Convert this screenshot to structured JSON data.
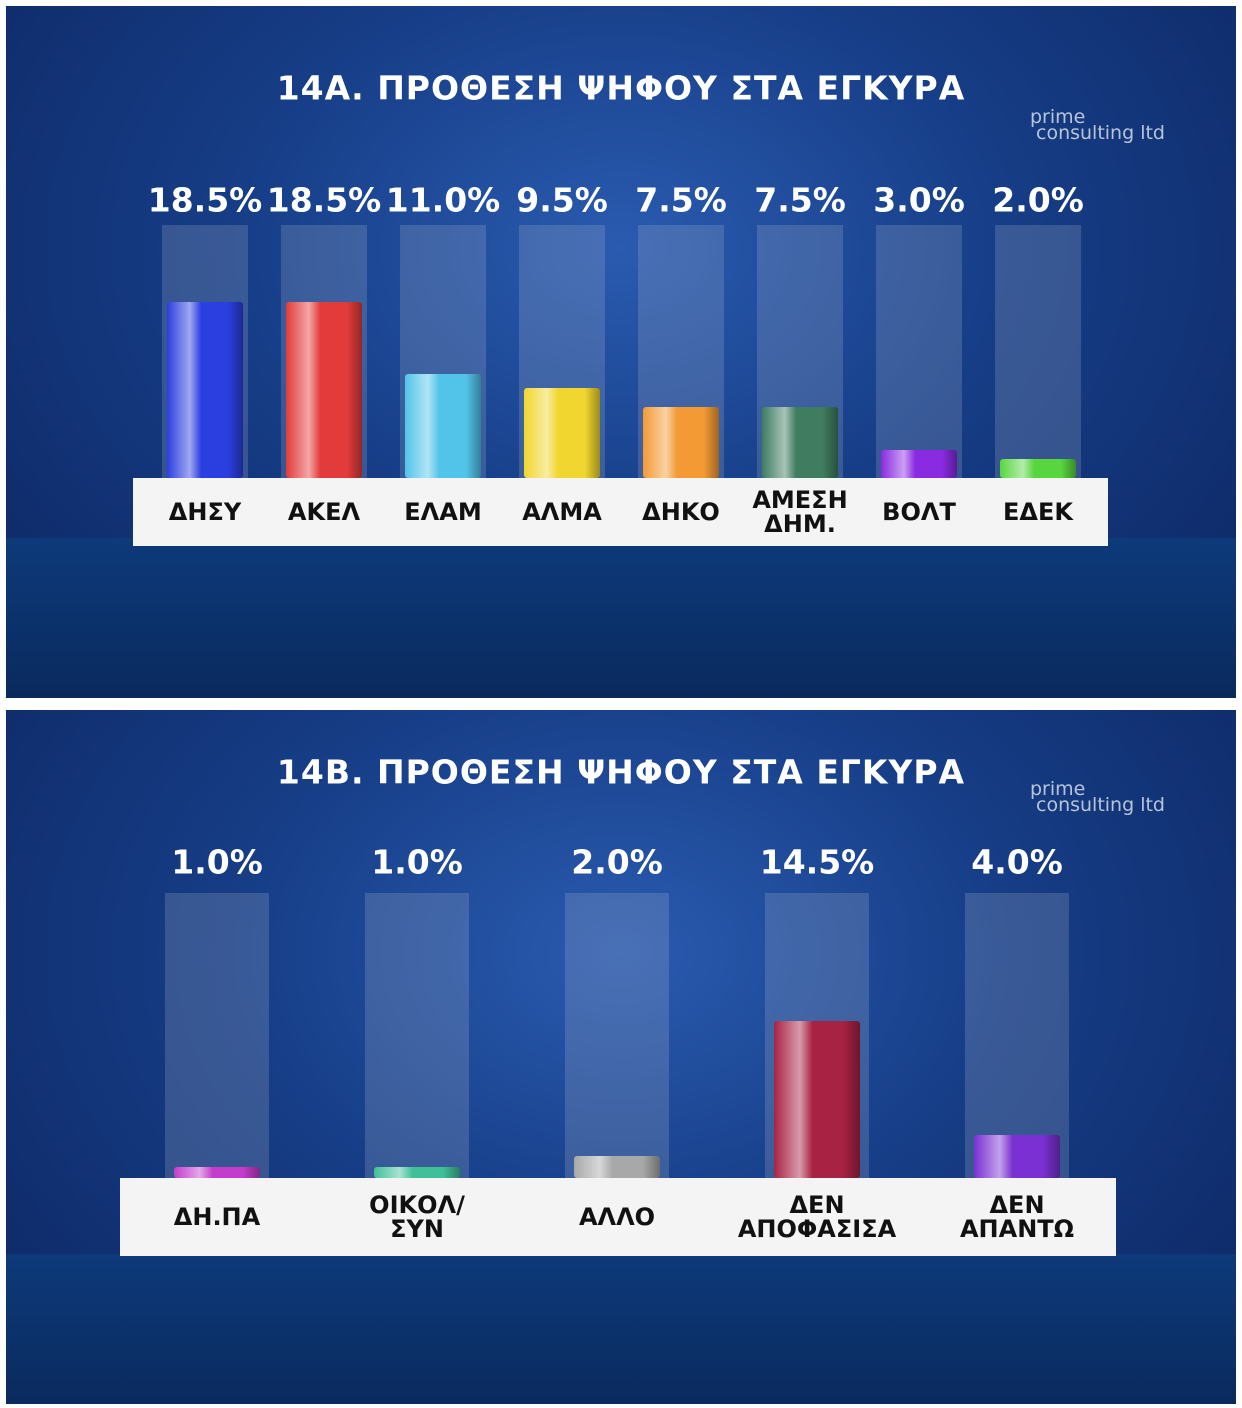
{
  "chart_data": [
    {
      "type": "bar",
      "title": "14Α. ΠΡΟΘΕΣΗ ΨΗΦΟΥ ΣΤΑ ΕΓΚΥΡΑ",
      "logo": [
        "prime",
        "consulting ltd"
      ],
      "categories": [
        "ΔΗΣΥ",
        "ΑΚΕΛ",
        "ΕΛΑΜ",
        "ΑΛΜΑ",
        "ΔΗΚΟ",
        "ΑΜΕΣΗ\nΔΗΜ.",
        "ΒΟΛΤ",
        "ΕΔΕΚ"
      ],
      "values": [
        18.5,
        18.5,
        11.0,
        9.5,
        7.5,
        7.5,
        3.0,
        2.0
      ],
      "value_labels": [
        "18.5%",
        "18.5%",
        "11.0%",
        "9.5%",
        "7.5%",
        "7.5%",
        "3.0%",
        "2.0%"
      ],
      "colors": [
        "#2b3fe0",
        "#e33b3b",
        "#52c4ea",
        "#f0d62e",
        "#f39a35",
        "#3f7c60",
        "#8a2be2",
        "#58d63f"
      ]
    },
    {
      "type": "bar",
      "title": "14Β. ΠΡΟΘΕΣΗ ΨΗΦΟΥ ΣΤΑ ΕΓΚΥΡΑ",
      "logo": [
        "prime",
        "consulting ltd"
      ],
      "categories": [
        "ΔΗ.ΠΑ",
        "ΟΙΚΟΛ/\nΣΥΝ",
        "ΑΛΛΟ",
        "ΔΕΝ\nΑΠΟΦΑΣΙΣΑ",
        "ΔΕΝ\nΑΠΑΝΤΩ"
      ],
      "values": [
        1.0,
        1.0,
        2.0,
        14.5,
        4.0
      ],
      "value_labels": [
        "1.0%",
        "1.0%",
        "2.0%",
        "14.5%",
        "4.0%"
      ],
      "colors": [
        "#c43ccc",
        "#40c098",
        "#a8a8a8",
        "#a82244",
        "#7a30d2"
      ]
    }
  ]
}
